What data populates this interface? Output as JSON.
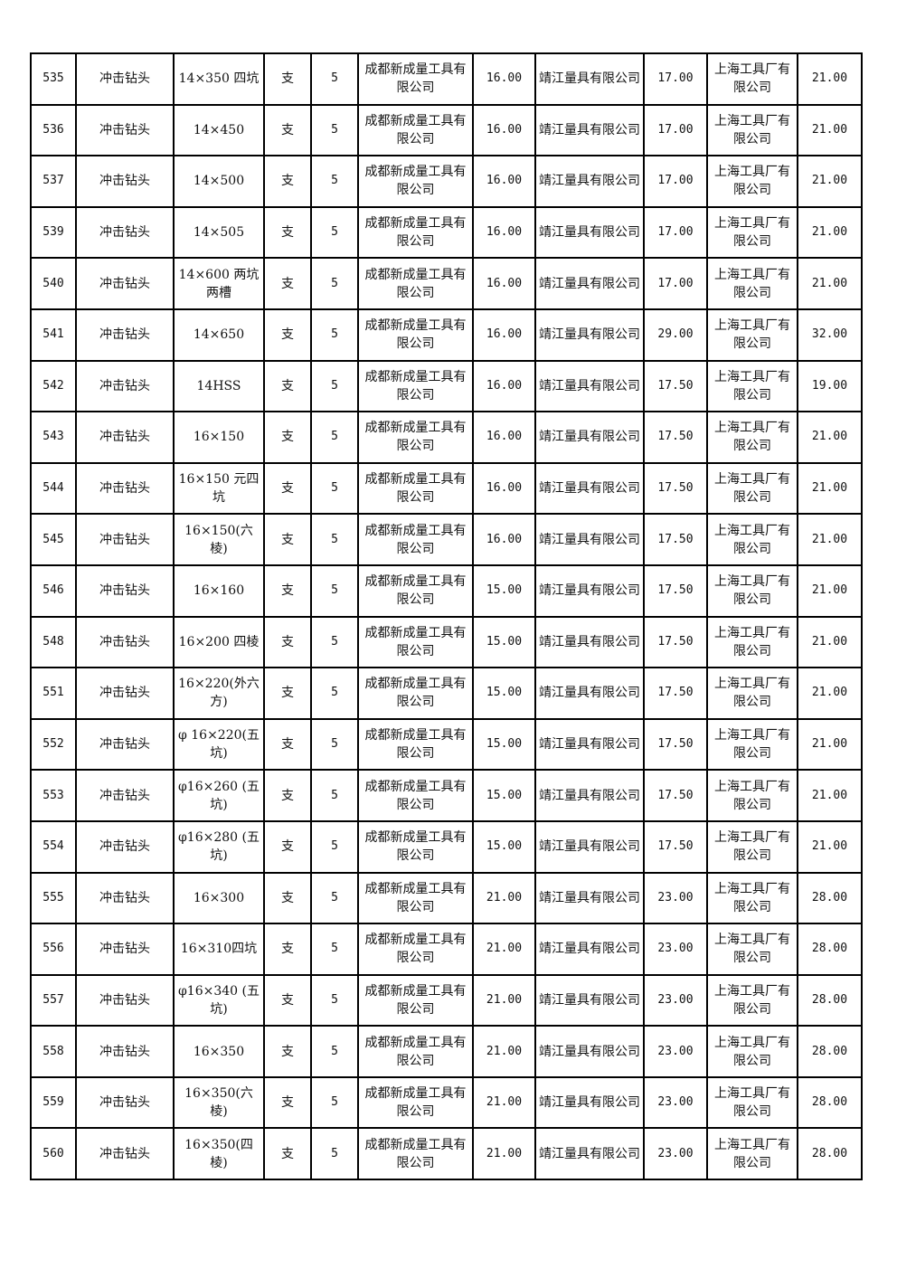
{
  "rows": [
    {
      "id": "535",
      "name": "冲击钻头",
      "spec": "14×350 四坑",
      "unit": "支",
      "qty": "5",
      "s1": "成都新成量工具有限公司",
      "p1": "16.00",
      "s2": "靖江量具有限公司",
      "p2": "17.00",
      "s3": "上海工具厂有限公司",
      "p3": "21.00"
    },
    {
      "id": "536",
      "name": "冲击钻头",
      "spec": "14×450",
      "unit": "支",
      "qty": "5",
      "s1": "成都新成量工具有限公司",
      "p1": "16.00",
      "s2": "靖江量具有限公司",
      "p2": "17.00",
      "s3": "上海工具厂有限公司",
      "p3": "21.00"
    },
    {
      "id": "537",
      "name": "冲击钻头",
      "spec": "14×500",
      "unit": "支",
      "qty": "5",
      "s1": "成都新成量工具有限公司",
      "p1": "16.00",
      "s2": "靖江量具有限公司",
      "p2": "17.00",
      "s3": "上海工具厂有限公司",
      "p3": "21.00"
    },
    {
      "id": "539",
      "name": "冲击钻头",
      "spec": "14×505",
      "unit": "支",
      "qty": "5",
      "s1": "成都新成量工具有限公司",
      "p1": "16.00",
      "s2": "靖江量具有限公司",
      "p2": "17.00",
      "s3": "上海工具厂有限公司",
      "p3": "21.00"
    },
    {
      "id": "540",
      "name": "冲击钻头",
      "spec": "14×600 两坑两槽",
      "unit": "支",
      "qty": "5",
      "s1": "成都新成量工具有限公司",
      "p1": "16.00",
      "s2": "靖江量具有限公司",
      "p2": "17.00",
      "s3": "上海工具厂有限公司",
      "p3": "21.00"
    },
    {
      "id": "541",
      "name": "冲击钻头",
      "spec": "14×650",
      "unit": "支",
      "qty": "5",
      "s1": "成都新成量工具有限公司",
      "p1": "16.00",
      "s2": "靖江量具有限公司",
      "p2": "29.00",
      "s3": "上海工具厂有限公司",
      "p3": "32.00"
    },
    {
      "id": "542",
      "name": "冲击钻头",
      "spec": "14HSS",
      "unit": "支",
      "qty": "5",
      "s1": "成都新成量工具有限公司",
      "p1": "16.00",
      "s2": "靖江量具有限公司",
      "p2": "17.50",
      "s3": "上海工具厂有限公司",
      "p3": "19.00"
    },
    {
      "id": "543",
      "name": "冲击钻头",
      "spec": "16×150",
      "unit": "支",
      "qty": "5",
      "s1": "成都新成量工具有限公司",
      "p1": "16.00",
      "s2": "靖江量具有限公司",
      "p2": "17.50",
      "s3": "上海工具厂有限公司",
      "p3": "21.00"
    },
    {
      "id": "544",
      "name": "冲击钻头",
      "spec": "16×150 元四坑",
      "unit": "支",
      "qty": "5",
      "s1": "成都新成量工具有限公司",
      "p1": "16.00",
      "s2": "靖江量具有限公司",
      "p2": "17.50",
      "s3": "上海工具厂有限公司",
      "p3": "21.00"
    },
    {
      "id": "545",
      "name": "冲击钻头",
      "spec": "16×150(六棱)",
      "unit": "支",
      "qty": "5",
      "s1": "成都新成量工具有限公司",
      "p1": "16.00",
      "s2": "靖江量具有限公司",
      "p2": "17.50",
      "s3": "上海工具厂有限公司",
      "p3": "21.00"
    },
    {
      "id": "546",
      "name": "冲击钻头",
      "spec": "16×160",
      "unit": "支",
      "qty": "5",
      "s1": "成都新成量工具有限公司",
      "p1": "15.00",
      "s2": "靖江量具有限公司",
      "p2": "17.50",
      "s3": "上海工具厂有限公司",
      "p3": "21.00"
    },
    {
      "id": "548",
      "name": "冲击钻头",
      "spec": "16×200 四棱",
      "unit": "支",
      "qty": "5",
      "s1": "成都新成量工具有限公司",
      "p1": "15.00",
      "s2": "靖江量具有限公司",
      "p2": "17.50",
      "s3": "上海工具厂有限公司",
      "p3": "21.00"
    },
    {
      "id": "551",
      "name": "冲击钻头",
      "spec": "16×220(外六方)",
      "unit": "支",
      "qty": "5",
      "s1": "成都新成量工具有限公司",
      "p1": "15.00",
      "s2": "靖江量具有限公司",
      "p2": "17.50",
      "s3": "上海工具厂有限公司",
      "p3": "21.00"
    },
    {
      "id": "552",
      "name": "冲击钻头",
      "spec": "φ 16×220(五坑)",
      "unit": "支",
      "qty": "5",
      "s1": "成都新成量工具有限公司",
      "p1": "15.00",
      "s2": "靖江量具有限公司",
      "p2": "17.50",
      "s3": "上海工具厂有限公司",
      "p3": "21.00"
    },
    {
      "id": "553",
      "name": "冲击钻头",
      "spec": "φ16×260 (五坑)",
      "unit": "支",
      "qty": "5",
      "s1": "成都新成量工具有限公司",
      "p1": "15.00",
      "s2": "靖江量具有限公司",
      "p2": "17.50",
      "s3": "上海工具厂有限公司",
      "p3": "21.00"
    },
    {
      "id": "554",
      "name": "冲击钻头",
      "spec": "φ16×280 (五坑)",
      "unit": "支",
      "qty": "5",
      "s1": "成都新成量工具有限公司",
      "p1": "15.00",
      "s2": "靖江量具有限公司",
      "p2": "17.50",
      "s3": "上海工具厂有限公司",
      "p3": "21.00"
    },
    {
      "id": "555",
      "name": "冲击钻头",
      "spec": "16×300",
      "unit": "支",
      "qty": "5",
      "s1": "成都新成量工具有限公司",
      "p1": "21.00",
      "s2": "靖江量具有限公司",
      "p2": "23.00",
      "s3": "上海工具厂有限公司",
      "p3": "28.00"
    },
    {
      "id": "556",
      "name": "冲击钻头",
      "spec": "16×310四坑",
      "unit": "支",
      "qty": "5",
      "s1": "成都新成量工具有限公司",
      "p1": "21.00",
      "s2": "靖江量具有限公司",
      "p2": "23.00",
      "s3": "上海工具厂有限公司",
      "p3": "28.00"
    },
    {
      "id": "557",
      "name": "冲击钻头",
      "spec": "φ16×340 (五坑)",
      "unit": "支",
      "qty": "5",
      "s1": "成都新成量工具有限公司",
      "p1": "21.00",
      "s2": "靖江量具有限公司",
      "p2": "23.00",
      "s3": "上海工具厂有限公司",
      "p3": "28.00"
    },
    {
      "id": "558",
      "name": "冲击钻头",
      "spec": "16×350",
      "unit": "支",
      "qty": "5",
      "s1": "成都新成量工具有限公司",
      "p1": "21.00",
      "s2": "靖江量具有限公司",
      "p2": "23.00",
      "s3": "上海工具厂有限公司",
      "p3": "28.00"
    },
    {
      "id": "559",
      "name": "冲击钻头",
      "spec": "16×350(六棱)",
      "unit": "支",
      "qty": "5",
      "s1": "成都新成量工具有限公司",
      "p1": "21.00",
      "s2": "靖江量具有限公司",
      "p2": "23.00",
      "s3": "上海工具厂有限公司",
      "p3": "28.00"
    },
    {
      "id": "560",
      "name": "冲击钻头",
      "spec": "16×350(四棱)",
      "unit": "支",
      "qty": "5",
      "s1": "成都新成量工具有限公司",
      "p1": "21.00",
      "s2": "靖江量具有限公司",
      "p2": "23.00",
      "s3": "上海工具厂有限公司",
      "p3": "28.00"
    }
  ]
}
